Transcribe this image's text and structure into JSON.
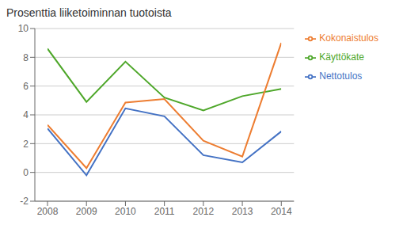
{
  "chart_data": {
    "type": "line",
    "title": "Prosenttia liiketoiminnan tuotoista",
    "x": [
      2008,
      2009,
      2010,
      2011,
      2012,
      2013,
      2014
    ],
    "series": [
      {
        "name": "Käyttökate",
        "color": "#4EA72A",
        "values": [
          8.6,
          4.9,
          7.7,
          5.2,
          4.3,
          5.3,
          5.8
        ]
      },
      {
        "name": "Nettotulos",
        "color": "#4472C4",
        "values": [
          3.05,
          -0.2,
          4.45,
          3.9,
          1.2,
          0.7,
          2.85
        ]
      },
      {
        "name": "Kokonaistulos",
        "color": "#ED7D31",
        "values": [
          3.3,
          0.3,
          4.85,
          5.1,
          2.2,
          1.1,
          9.0
        ]
      }
    ],
    "xlim": [
      2008,
      2014
    ],
    "xticks": [
      2008,
      2009,
      2010,
      2011,
      2012,
      2013,
      2014
    ],
    "ylim": [
      -2,
      10
    ],
    "yticks": [
      -2,
      0,
      2,
      4,
      6,
      8,
      10
    ],
    "grid": true,
    "legend": "right"
  }
}
